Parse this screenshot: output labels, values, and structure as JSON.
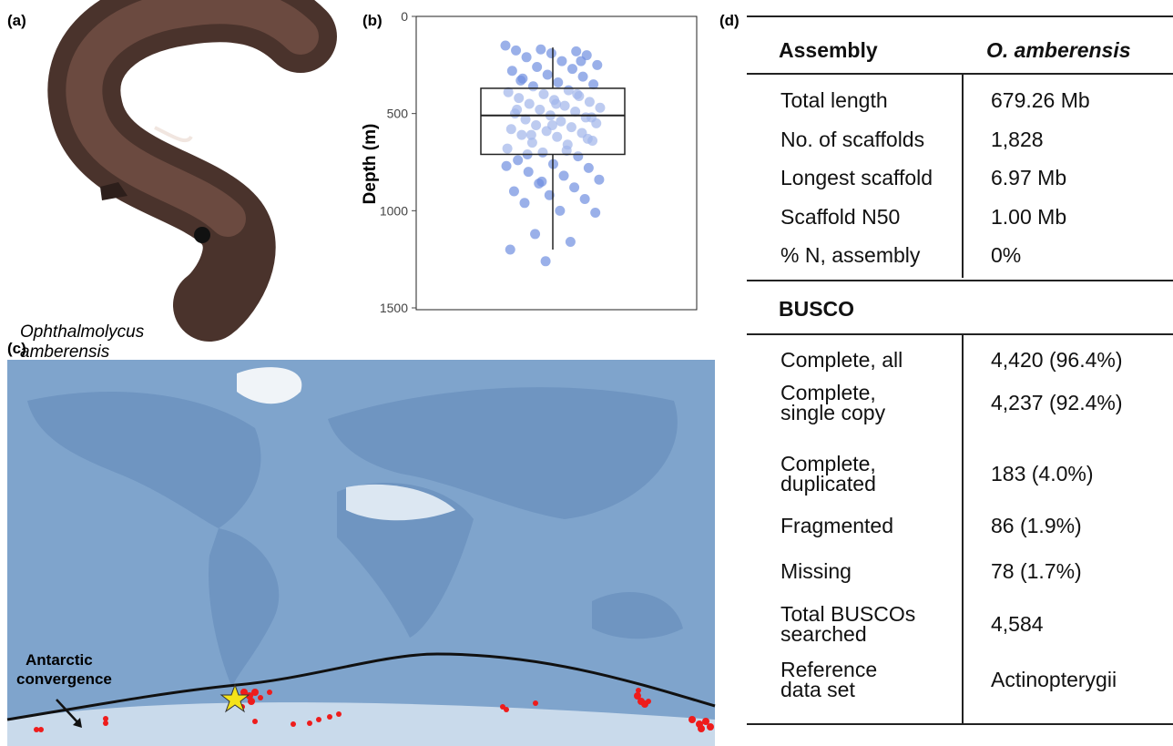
{
  "panel_labels": {
    "a": "(a)",
    "b": "(b)",
    "c": "(c)",
    "d": "(d)"
  },
  "photo": {
    "caption": [
      "Ophthalmolycus",
      "amberensis"
    ]
  },
  "chart_data": {
    "type": "box",
    "ylabel": "Depth (m)",
    "ylim": [
      0,
      1500
    ],
    "y_inverted": true,
    "yticks": [
      0,
      500,
      1000,
      1500
    ],
    "point_color": "#6f8fe0",
    "whisker_low": 160,
    "q1": 370,
    "median": 510,
    "q3": 710,
    "whisker_high": 1200,
    "points": [
      150,
      170,
      180,
      175,
      190,
      200,
      210,
      230,
      250,
      260,
      270,
      280,
      300,
      310,
      320,
      340,
      350,
      360,
      380,
      390,
      400,
      410,
      420,
      430,
      440,
      450,
      460,
      470,
      480,
      490,
      500,
      510,
      520,
      530,
      540,
      550,
      560,
      570,
      580,
      590,
      600,
      610,
      620,
      640,
      650,
      660,
      680,
      700,
      720,
      740,
      760,
      780,
      800,
      820,
      840,
      860,
      880,
      900,
      920,
      940,
      960,
      1000,
      1010,
      1120,
      1160,
      1200,
      1260,
      230,
      330,
      450,
      520,
      610,
      690,
      770,
      850,
      400,
      480,
      560,
      630,
      710
    ]
  },
  "map": {
    "annotation": [
      "Antarctic",
      "convergence"
    ]
  },
  "table": {
    "header": [
      "Assembly",
      "O. amberensis"
    ],
    "assembly_rows": [
      [
        "Total length",
        "679.26 Mb"
      ],
      [
        "No. of scaffolds",
        "1,828"
      ],
      [
        "Longest scaffold",
        "6.97 Mb"
      ],
      [
        "Scaffold N50",
        "1.00 Mb"
      ],
      [
        "% N, assembly",
        "0%"
      ]
    ],
    "busco_title": "BUSCO",
    "busco_rows": [
      [
        "Complete, all",
        "4,420 (96.4%)"
      ],
      [
        "Complete,\nsingle copy",
        "4,237 (92.4%)"
      ],
      [
        "Complete,\nduplicated",
        "183 (4.0%)"
      ],
      [
        "Fragmented",
        "86 (1.9%)"
      ],
      [
        "Missing",
        "78 (1.7%)"
      ],
      [
        "Total BUSCOs\nsearched",
        "4,584"
      ],
      [
        "Reference\ndata set",
        "Actinopterygii"
      ]
    ]
  }
}
